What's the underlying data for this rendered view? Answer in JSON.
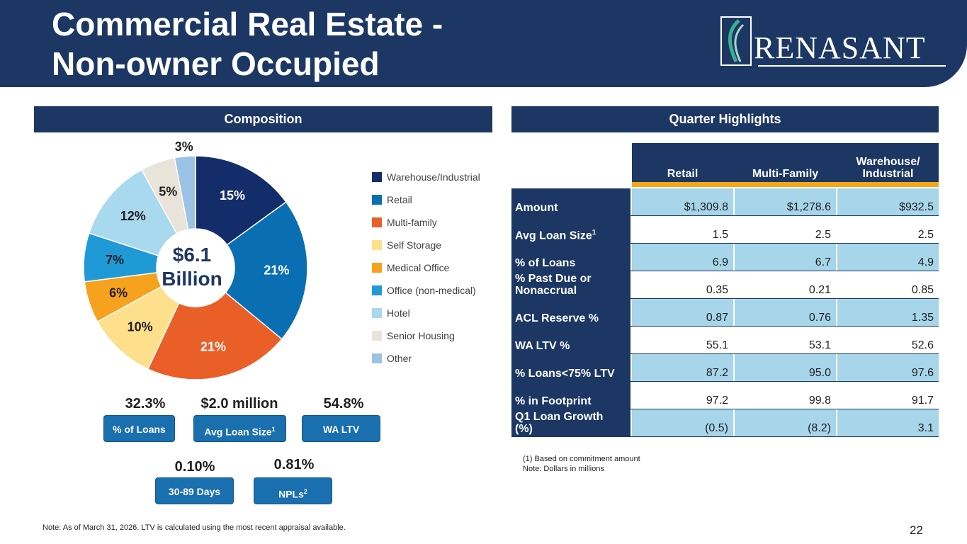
{
  "header": {
    "title_line1": "Commercial Real Estate -",
    "title_line2": "Non-owner Occupied",
    "logo_text": "RENASANT"
  },
  "composition": {
    "heading": "Composition",
    "center_value": "$6.1",
    "center_unit": "Billion"
  },
  "chart_data": {
    "type": "pie",
    "slices": [
      {
        "name": "Warehouse/Industrial",
        "value": 15,
        "label": "15%",
        "color": "#132d6b"
      },
      {
        "name": "Retail",
        "value": 21,
        "label": "21%",
        "color": "#0a6fb2"
      },
      {
        "name": "Multi-family",
        "value": 21,
        "label": "21%",
        "color": "#ea5f28"
      },
      {
        "name": "Self Storage",
        "value": 10,
        "label": "10%",
        "color": "#fedf8b"
      },
      {
        "name": "Medical Office",
        "value": 6,
        "label": "6%",
        "color": "#f7a21e"
      },
      {
        "name": "Office (non-medical)",
        "value": 7,
        "label": "7%",
        "color": "#1f9ad6"
      },
      {
        "name": "Hotel",
        "value": 12,
        "label": "12%",
        "color": "#a9d9ee"
      },
      {
        "name": "Senior Housing",
        "value": 5,
        "label": "5%",
        "color": "#e8e4da"
      },
      {
        "name": "Other",
        "value": 3,
        "label": "3%",
        "color": "#9cc3e6"
      }
    ],
    "legend_position": "right"
  },
  "metrics": {
    "pct_loans_value": "32.3%",
    "pct_loans_label": "% of Loans",
    "avg_loan_value": "$2.0 million",
    "avg_loan_label": "Avg Loan Size",
    "avg_loan_sup": "1",
    "wa_ltv_value": "54.8%",
    "wa_ltv_label": "WA LTV",
    "days_value": "0.10%",
    "days_label": "30-89 Days",
    "npl_value": "0.81%",
    "npl_label": "NPLs",
    "npl_sup": "2"
  },
  "highlights": {
    "heading": "Quarter Highlights",
    "columns": [
      "Retail",
      "Multi-Family",
      "Warehouse/",
      "Industrial"
    ],
    "rows": [
      {
        "label": "Amount",
        "sup": "",
        "values": [
          "$1,309.8",
          "$1,278.6",
          "$932.5"
        ]
      },
      {
        "label": "Avg Loan Size",
        "sup": "1",
        "values": [
          "1.5",
          "2.5",
          "2.5"
        ]
      },
      {
        "label": "% of Loans",
        "sup": "",
        "values": [
          "6.9",
          "6.7",
          "4.9"
        ]
      },
      {
        "label": "% Past Due or",
        "label2": "Nonaccrual",
        "sup": "",
        "values": [
          "0.35",
          "0.21",
          "0.85"
        ]
      },
      {
        "label": "ACL Reserve %",
        "sup": "",
        "values": [
          "0.87",
          "0.76",
          "1.35"
        ]
      },
      {
        "label": "WA LTV %",
        "sup": "",
        "values": [
          "55.1",
          "53.1",
          "52.6"
        ]
      },
      {
        "label": "% Loans<75% LTV",
        "sup": "",
        "values": [
          "87.2",
          "95.0",
          "97.6"
        ]
      },
      {
        "label": "% in Footprint",
        "sup": "",
        "values": [
          "97.2",
          "99.8",
          "91.7"
        ]
      },
      {
        "label": "Q1 Loan Growth",
        "label2": "(%)",
        "sup": "",
        "values": [
          "(0.5)",
          "(8.2)",
          "3.1"
        ]
      }
    ],
    "footnote1": "(1) Based on commitment amount",
    "footnote2": "Note: Dollars in millions"
  },
  "footer": {
    "note": "Note: As of March 31, 2026. LTV is calculated using the most recent appraisal available.",
    "page": "22"
  }
}
